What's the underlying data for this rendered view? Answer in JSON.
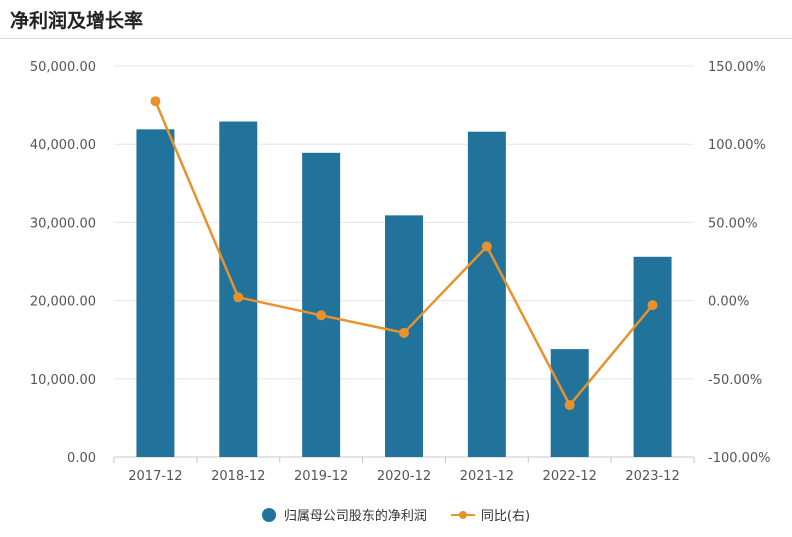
{
  "title": "净利润及增长率",
  "colors": {
    "bar": "#21739b",
    "line": "#e8922d",
    "grid": "#e6e6e6",
    "axis_text": "#555555"
  },
  "chart_data": {
    "type": "bar+line",
    "categories": [
      "2017-12",
      "2018-12",
      "2019-12",
      "2020-12",
      "2021-12",
      "2022-12",
      "2023-12"
    ],
    "series": [
      {
        "name": "归属母公司股东的净利润",
        "type": "bar",
        "axis": "left",
        "values": [
          41900,
          42900,
          38900,
          30900,
          41600,
          13800,
          25600
        ]
      },
      {
        "name": "同比(右)",
        "type": "line",
        "axis": "right",
        "values": [
          127.5,
          2.1,
          -9.4,
          -20.6,
          34.6,
          -66.8,
          -2.9
        ]
      }
    ],
    "y_left": {
      "min": 0,
      "max": 50000,
      "ticks": [
        0,
        10000,
        20000,
        30000,
        40000,
        50000
      ],
      "tick_labels": [
        "0.00",
        "10,000.00",
        "20,000.00",
        "30,000.00",
        "40,000.00",
        "50,000.00"
      ]
    },
    "y_right": {
      "min": -100,
      "max": 150,
      "ticks": [
        -100,
        -50,
        0,
        50,
        100,
        150
      ],
      "tick_labels": [
        "-100.00%",
        "-50.00%",
        "0.00%",
        "50.00%",
        "100.00%",
        "150.00%"
      ]
    },
    "grid": true,
    "legend_position": "bottom"
  },
  "legend": {
    "bar_label": "归属母公司股东的净利润",
    "line_label": "同比(右)"
  }
}
